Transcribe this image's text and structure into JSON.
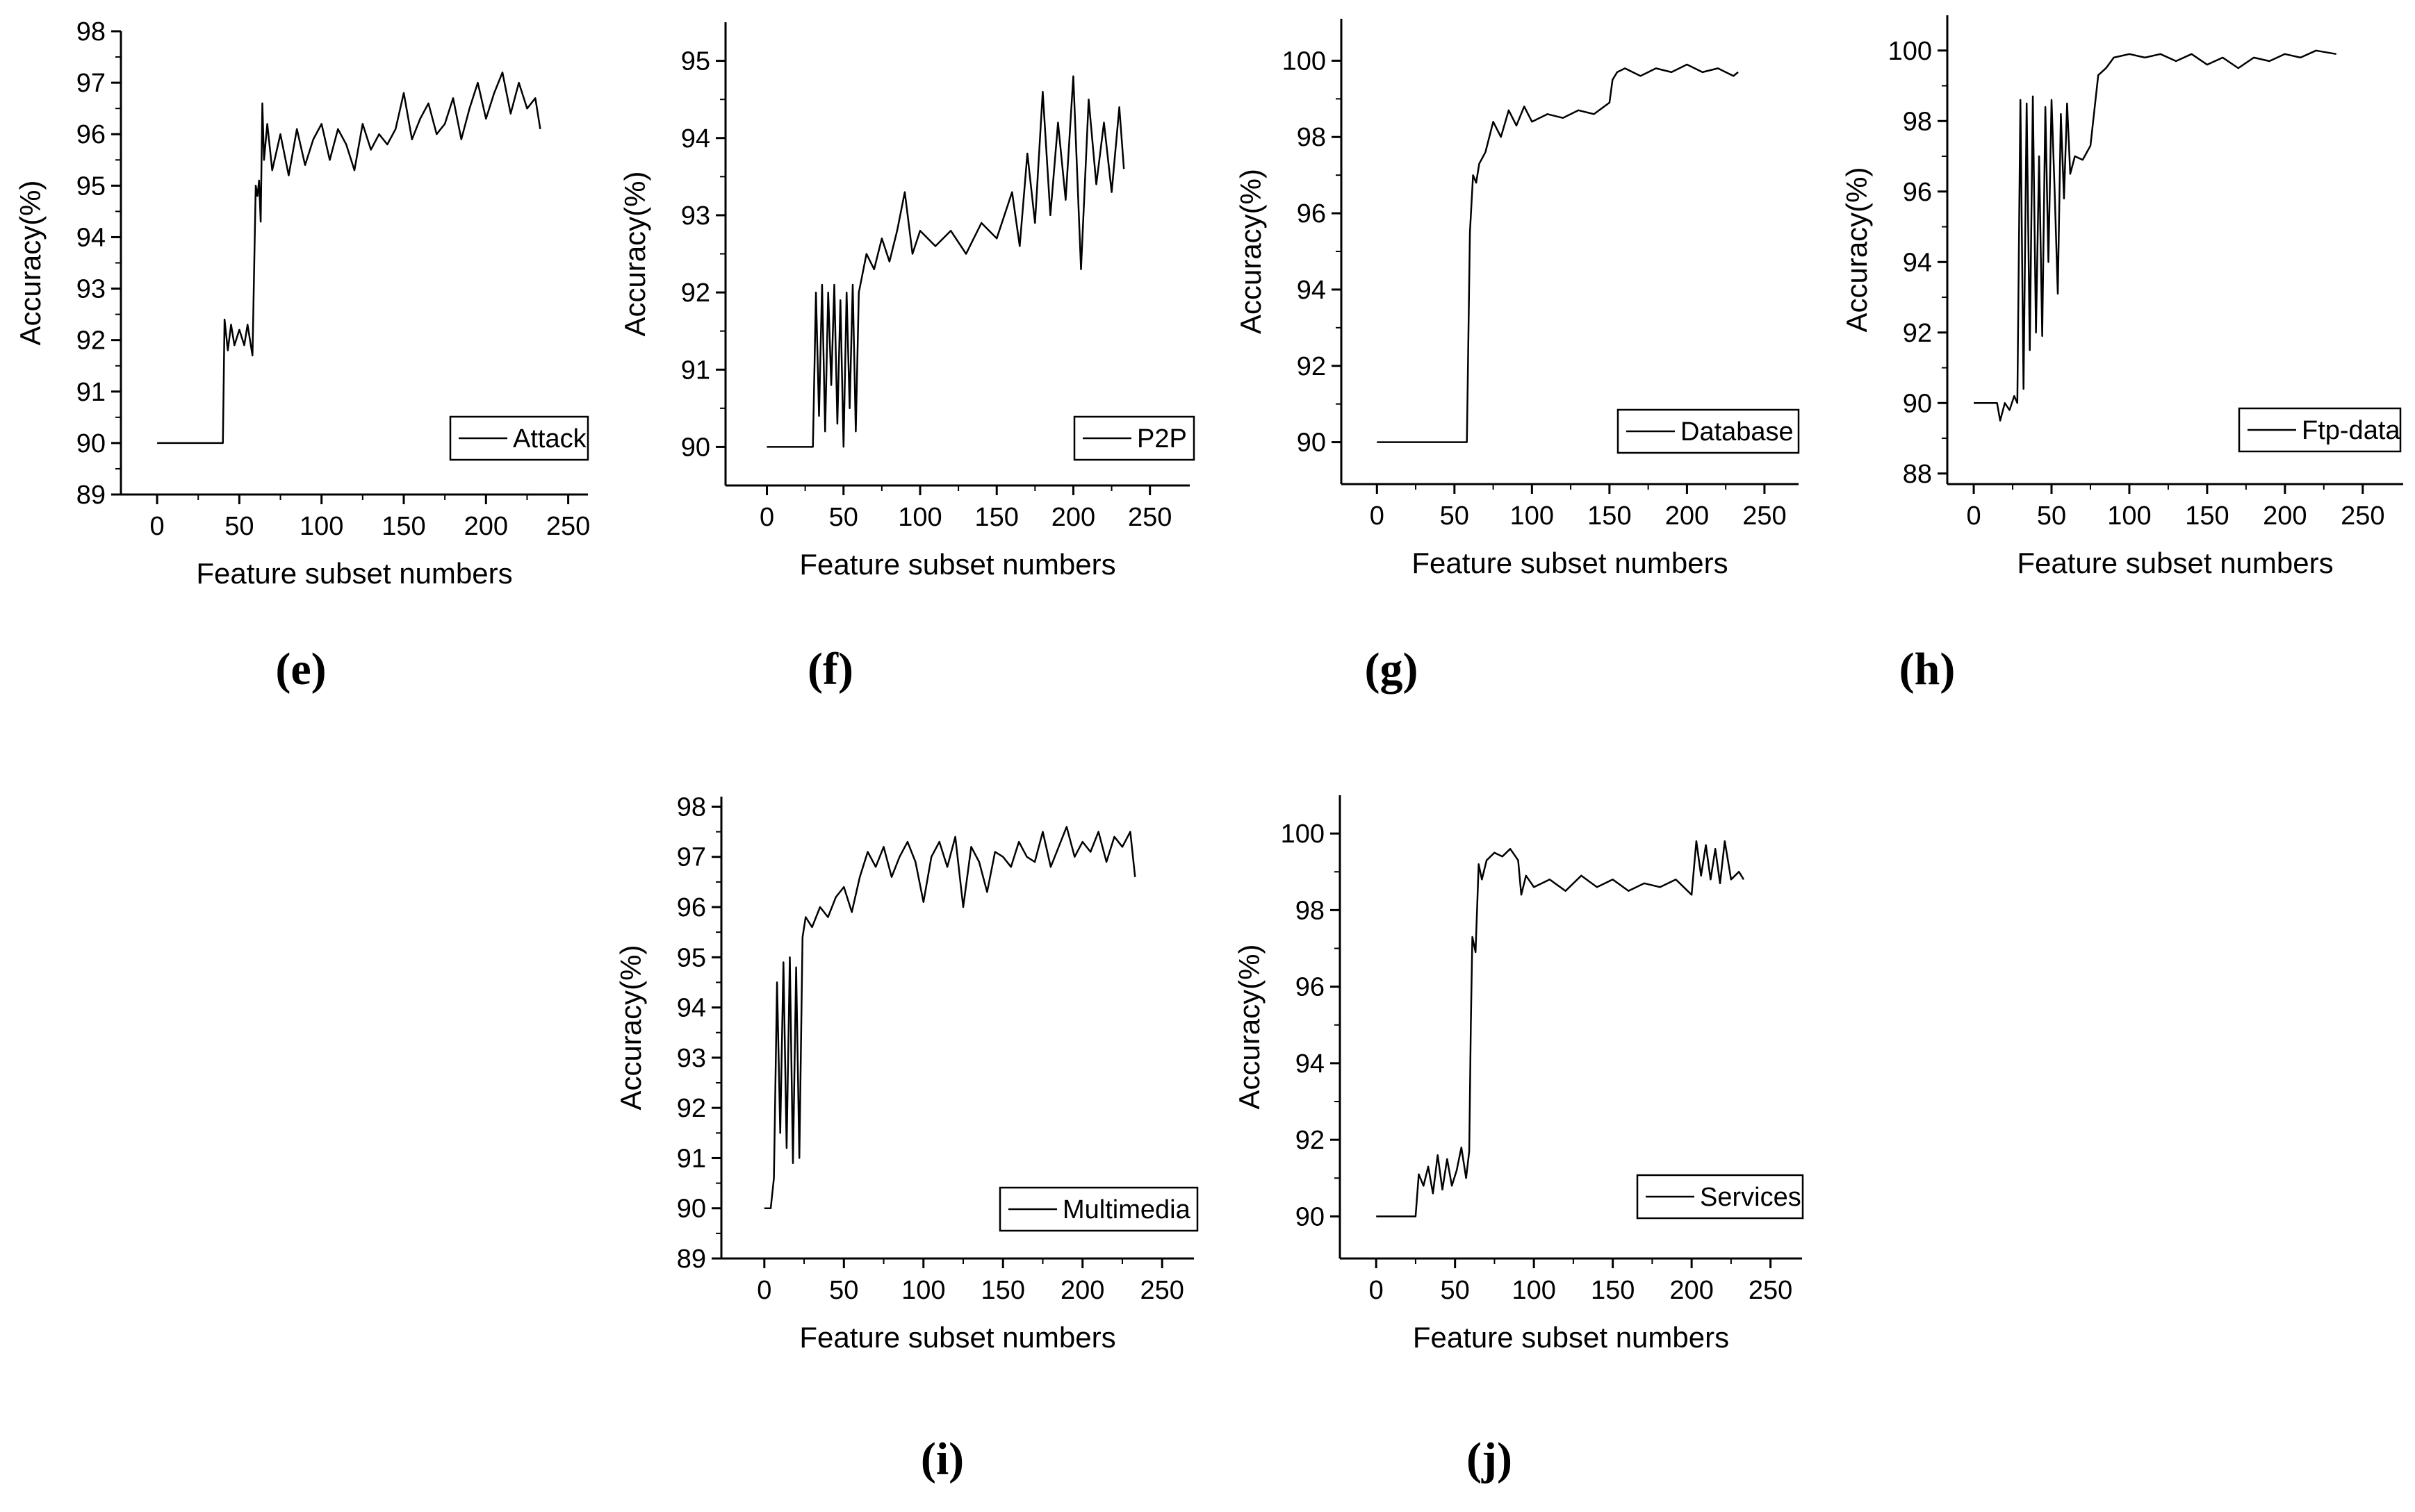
{
  "chart_data": [
    {
      "type": "line",
      "panel_label": "(e)",
      "series_name": "Attack",
      "xlabel": "Feature subset numbers",
      "ylabel": "Accuracy(%)",
      "xlim": [
        -22,
        262
      ],
      "ylim": [
        89,
        98
      ],
      "xticks": [
        0,
        50,
        100,
        150,
        200,
        250
      ],
      "yticks": [
        89,
        90,
        91,
        92,
        93,
        94,
        95,
        96,
        97,
        98
      ],
      "legend_position": "lower-right",
      "x": [
        0,
        40,
        41,
        43,
        45,
        47,
        50,
        53,
        55,
        58,
        60,
        61,
        62,
        63,
        64,
        65,
        67,
        70,
        75,
        80,
        85,
        90,
        95,
        100,
        105,
        110,
        115,
        120,
        125,
        130,
        135,
        140,
        145,
        150,
        155,
        160,
        165,
        170,
        175,
        180,
        185,
        190,
        195,
        200,
        205,
        210,
        215,
        220,
        225,
        230,
        233
      ],
      "y": [
        90.0,
        90.0,
        92.4,
        91.8,
        92.3,
        91.9,
        92.2,
        91.9,
        92.3,
        91.7,
        95.0,
        94.8,
        95.1,
        94.3,
        96.6,
        95.5,
        96.2,
        95.3,
        96.0,
        95.2,
        96.1,
        95.4,
        95.9,
        96.2,
        95.5,
        96.1,
        95.8,
        95.3,
        96.2,
        95.7,
        96.0,
        95.8,
        96.1,
        96.8,
        95.9,
        96.3,
        96.6,
        96.0,
        96.2,
        96.7,
        95.9,
        96.5,
        97.0,
        96.3,
        96.8,
        97.2,
        96.4,
        97.0,
        96.5,
        96.7,
        96.1
      ]
    },
    {
      "type": "line",
      "panel_label": "(f)",
      "series_name": "P2P",
      "xlabel": "Feature subset numbers",
      "ylabel": "Accuracy(%)",
      "xlim": [
        -27,
        276
      ],
      "ylim": [
        89.5,
        95.5
      ],
      "xticks": [
        0,
        50,
        100,
        150,
        200,
        250
      ],
      "yticks": [
        90,
        91,
        92,
        93,
        94,
        95
      ],
      "legend_position": "lower-right",
      "x": [
        0,
        30,
        32,
        34,
        36,
        38,
        40,
        42,
        44,
        46,
        48,
        50,
        52,
        54,
        56,
        58,
        60,
        65,
        70,
        75,
        80,
        85,
        90,
        95,
        100,
        110,
        120,
        130,
        140,
        150,
        160,
        165,
        170,
        175,
        180,
        185,
        190,
        195,
        200,
        205,
        210,
        215,
        220,
        225,
        230,
        233
      ],
      "y": [
        90.0,
        90.0,
        92.0,
        90.4,
        92.1,
        90.2,
        92.0,
        90.8,
        92.1,
        90.3,
        91.9,
        90.0,
        92.0,
        90.5,
        92.1,
        90.2,
        92.0,
        92.5,
        92.3,
        92.7,
        92.4,
        92.8,
        93.3,
        92.5,
        92.8,
        92.6,
        92.8,
        92.5,
        92.9,
        92.7,
        93.3,
        92.6,
        93.8,
        92.9,
        94.6,
        93.0,
        94.2,
        93.2,
        94.8,
        92.3,
        94.5,
        93.4,
        94.2,
        93.3,
        94.4,
        93.6
      ]
    },
    {
      "type": "line",
      "panel_label": "(g)",
      "series_name": "Database",
      "xlabel": "Feature subset numbers",
      "ylabel": "Accuracy(%)",
      "xlim": [
        -23,
        272
      ],
      "ylim": [
        88.9,
        101.1
      ],
      "xticks": [
        0,
        50,
        100,
        150,
        200,
        250
      ],
      "yticks": [
        90,
        92,
        94,
        96,
        98,
        100
      ],
      "legend_position": "lower-right",
      "x": [
        0,
        58,
        60,
        62,
        64,
        66,
        70,
        75,
        80,
        85,
        90,
        95,
        100,
        110,
        120,
        130,
        140,
        150,
        152,
        155,
        160,
        170,
        180,
        190,
        200,
        210,
        220,
        230,
        233
      ],
      "y": [
        90.0,
        90.0,
        95.5,
        97.0,
        96.8,
        97.3,
        97.6,
        98.4,
        98.0,
        98.7,
        98.3,
        98.8,
        98.4,
        98.6,
        98.5,
        98.7,
        98.6,
        98.9,
        99.5,
        99.7,
        99.8,
        99.6,
        99.8,
        99.7,
        99.9,
        99.7,
        99.8,
        99.6,
        99.7
      ]
    },
    {
      "type": "line",
      "panel_label": "(h)",
      "series_name": "Ftp-data",
      "xlabel": "Feature subset numbers",
      "ylabel": "Accuracy(%)",
      "xlim": [
        -17,
        276
      ],
      "ylim": [
        87.7,
        101.0
      ],
      "xticks": [
        0,
        50,
        100,
        150,
        200,
        250
      ],
      "yticks": [
        88,
        90,
        92,
        94,
        96,
        98,
        100
      ],
      "legend_position": "lower-right",
      "x": [
        0,
        15,
        17,
        20,
        23,
        26,
        28,
        30,
        32,
        34,
        36,
        38,
        40,
        42,
        44,
        46,
        48,
        50,
        52,
        54,
        56,
        58,
        60,
        62,
        65,
        70,
        75,
        80,
        85,
        90,
        100,
        110,
        120,
        130,
        140,
        150,
        160,
        170,
        180,
        190,
        200,
        210,
        220,
        233
      ],
      "y": [
        90.0,
        90.0,
        89.5,
        90.0,
        89.8,
        90.2,
        90.0,
        98.6,
        90.4,
        98.5,
        91.5,
        98.7,
        92.0,
        97.0,
        91.9,
        98.4,
        94.0,
        98.6,
        96.0,
        93.1,
        98.2,
        95.8,
        98.5,
        96.5,
        97.0,
        96.9,
        97.3,
        99.3,
        99.5,
        99.8,
        99.9,
        99.8,
        99.9,
        99.7,
        99.9,
        99.6,
        99.8,
        99.5,
        99.8,
        99.7,
        99.9,
        99.8,
        100.0,
        99.9
      ]
    },
    {
      "type": "line",
      "panel_label": "(i)",
      "series_name": "Multimedia",
      "xlabel": "Feature subset numbers",
      "ylabel": "Accuracy(%)",
      "xlim": [
        -27,
        270
      ],
      "ylim": [
        89,
        98.2
      ],
      "xticks": [
        0,
        50,
        100,
        150,
        200,
        250
      ],
      "yticks": [
        89,
        90,
        91,
        92,
        93,
        94,
        95,
        96,
        97,
        98
      ],
      "legend_position": "lower-right",
      "x": [
        0,
        4,
        6,
        8,
        10,
        12,
        14,
        16,
        18,
        20,
        22,
        24,
        26,
        30,
        35,
        40,
        45,
        50,
        55,
        60,
        65,
        70,
        75,
        80,
        85,
        90,
        95,
        100,
        105,
        110,
        115,
        120,
        125,
        130,
        135,
        140,
        145,
        150,
        155,
        160,
        165,
        170,
        175,
        180,
        185,
        190,
        195,
        200,
        205,
        210,
        215,
        220,
        225,
        230,
        233
      ],
      "y": [
        90.0,
        90.0,
        90.6,
        94.5,
        91.5,
        94.9,
        91.2,
        95.0,
        90.9,
        94.8,
        91.0,
        95.4,
        95.8,
        95.6,
        96.0,
        95.8,
        96.2,
        96.4,
        95.9,
        96.6,
        97.1,
        96.8,
        97.2,
        96.6,
        97.0,
        97.3,
        96.9,
        96.1,
        97.0,
        97.3,
        96.8,
        97.4,
        96.0,
        97.2,
        96.9,
        96.3,
        97.1,
        97.0,
        96.8,
        97.3,
        97.0,
        96.9,
        97.5,
        96.8,
        97.2,
        97.6,
        97.0,
        97.3,
        97.1,
        97.5,
        96.9,
        97.4,
        97.2,
        97.5,
        96.6
      ]
    },
    {
      "type": "line",
      "panel_label": "(j)",
      "series_name": "Services",
      "xlabel": "Feature subset numbers",
      "ylabel": "Accuracy(%)",
      "xlim": [
        -23,
        270
      ],
      "ylim": [
        88.9,
        101.0
      ],
      "xticks": [
        0,
        50,
        100,
        150,
        200,
        250
      ],
      "yticks": [
        90,
        92,
        94,
        96,
        98,
        100
      ],
      "legend_position": "lower-right",
      "x": [
        0,
        25,
        27,
        30,
        33,
        36,
        39,
        42,
        45,
        48,
        51,
        54,
        57,
        59,
        60,
        61,
        63,
        65,
        67,
        70,
        75,
        80,
        85,
        90,
        92,
        95,
        100,
        110,
        120,
        130,
        140,
        150,
        160,
        170,
        180,
        190,
        200,
        203,
        206,
        209,
        212,
        215,
        218,
        221,
        225,
        230,
        233
      ],
      "y": [
        90.0,
        90.0,
        91.1,
        90.8,
        91.3,
        90.6,
        91.6,
        90.7,
        91.5,
        90.8,
        91.2,
        91.8,
        91.0,
        91.7,
        95.0,
        97.3,
        96.9,
        99.2,
        98.8,
        99.3,
        99.5,
        99.4,
        99.6,
        99.3,
        98.4,
        98.9,
        98.6,
        98.8,
        98.5,
        98.9,
        98.6,
        98.8,
        98.5,
        98.7,
        98.6,
        98.8,
        98.4,
        99.8,
        98.9,
        99.7,
        98.8,
        99.6,
        98.7,
        99.8,
        98.8,
        99.0,
        98.8
      ]
    }
  ]
}
